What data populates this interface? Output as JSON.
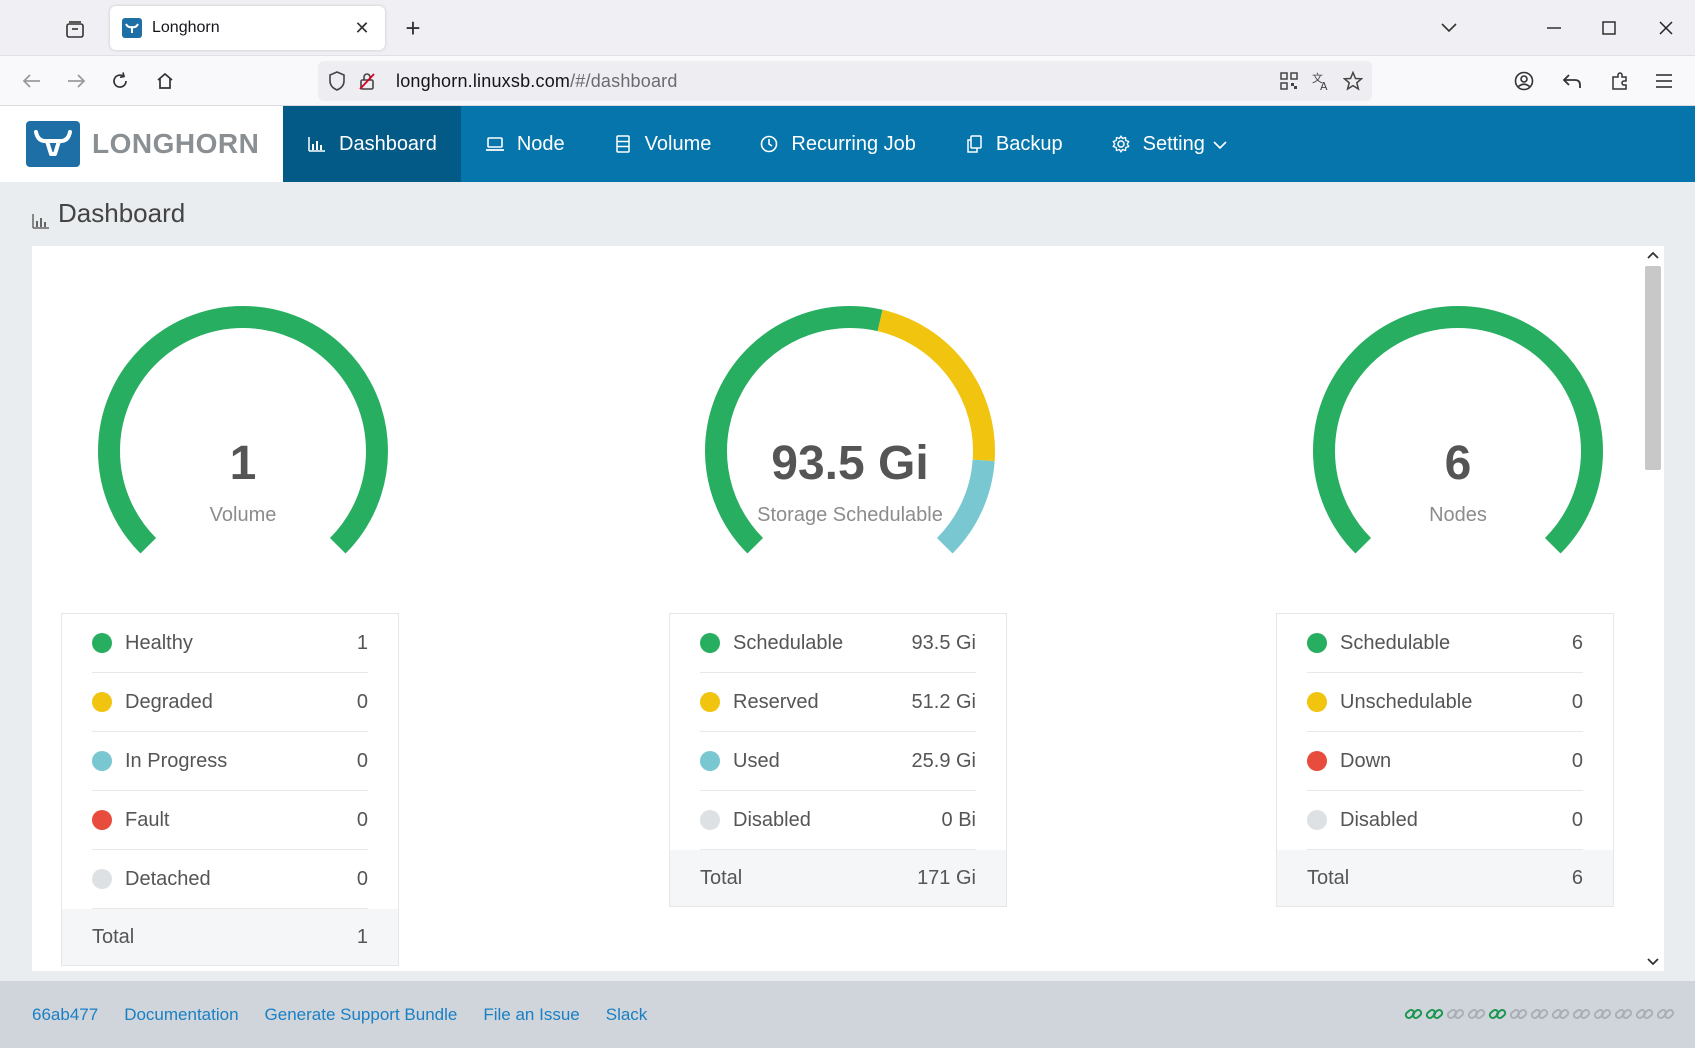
{
  "browser": {
    "tab_title": "Longhorn",
    "url_host": "longhorn.linuxsb.com",
    "url_path": "/#/dashboard"
  },
  "header": {
    "brand": "LONGHORN",
    "menu": [
      {
        "label": "Dashboard",
        "icon": "bar-chart-icon",
        "active": true
      },
      {
        "label": "Node",
        "icon": "laptop-icon"
      },
      {
        "label": "Volume",
        "icon": "database-icon"
      },
      {
        "label": "Recurring Job",
        "icon": "clock-icon"
      },
      {
        "label": "Backup",
        "icon": "copy-icon"
      },
      {
        "label": "Setting",
        "icon": "gear-icon"
      }
    ]
  },
  "page": {
    "title": "Dashboard"
  },
  "colors": {
    "green": "#27ae60",
    "yellow": "#f1c40f",
    "cyan": "#79c7d1",
    "red": "#e74c3c",
    "grey": "#dee1e3",
    "accent": "#0575ab"
  },
  "volume": {
    "value": "1",
    "label": "Volume",
    "rows": [
      {
        "label": "Healthy",
        "value": "1"
      },
      {
        "label": "Degraded",
        "value": "0"
      },
      {
        "label": "In Progress",
        "value": "0"
      },
      {
        "label": "Fault",
        "value": "0"
      },
      {
        "label": "Detached",
        "value": "0"
      }
    ],
    "total_label": "Total",
    "total_value": "1"
  },
  "storage": {
    "value": "93.5 Gi",
    "label": "Storage Schedulable",
    "rows": [
      {
        "label": "Schedulable",
        "value": "93.5 Gi"
      },
      {
        "label": "Reserved",
        "value": "51.2 Gi"
      },
      {
        "label": "Used",
        "value": "25.9 Gi"
      },
      {
        "label": "Disabled",
        "value": "0 Bi"
      }
    ],
    "total_label": "Total",
    "total_value": "171 Gi"
  },
  "nodes": {
    "value": "6",
    "label": "Nodes",
    "rows": [
      {
        "label": "Schedulable",
        "value": "6"
      },
      {
        "label": "Unschedulable",
        "value": "0"
      },
      {
        "label": "Down",
        "value": "0"
      },
      {
        "label": "Disabled",
        "value": "0"
      }
    ],
    "total_label": "Total",
    "total_value": "6"
  },
  "footer": {
    "version": "66ab477",
    "documentation": "Documentation",
    "support_bundle": "Generate Support Bundle",
    "file_issue": "File an Issue",
    "slack": "Slack",
    "connection_states": [
      true,
      true,
      false,
      false,
      true,
      false,
      false,
      false,
      false,
      false,
      false,
      false,
      false
    ]
  }
}
